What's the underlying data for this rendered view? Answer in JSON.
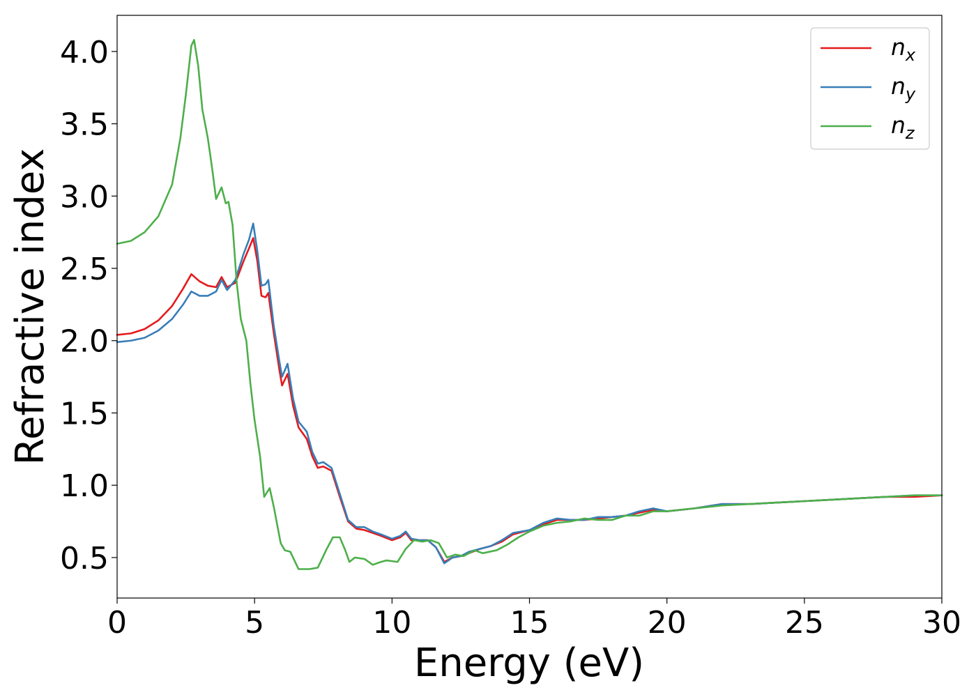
{
  "chart_data": {
    "type": "line",
    "title": "",
    "xlabel": "Energy (eV)",
    "ylabel": "Refractive index",
    "xlim": [
      0,
      30
    ],
    "ylim": [
      0.22,
      4.25
    ],
    "xticks": [
      0,
      5,
      10,
      15,
      20,
      25,
      30
    ],
    "yticks": [
      0.5,
      1.0,
      1.5,
      2.0,
      2.5,
      3.0,
      3.5,
      4.0
    ],
    "xtick_labels": [
      "0",
      "5",
      "10",
      "15",
      "20",
      "25",
      "30"
    ],
    "ytick_labels": [
      "0.5",
      "1.0",
      "1.5",
      "2.0",
      "2.5",
      "3.0",
      "3.5",
      "4.0"
    ],
    "grid": false,
    "legend_position": "top-right",
    "series": [
      {
        "name": "n",
        "subscript": "x",
        "color": "#e41a1c",
        "points": [
          [
            0,
            2.04
          ],
          [
            0.5,
            2.05
          ],
          [
            1.0,
            2.08
          ],
          [
            1.5,
            2.14
          ],
          [
            2.0,
            2.24
          ],
          [
            2.4,
            2.36
          ],
          [
            2.7,
            2.46
          ],
          [
            3.0,
            2.41
          ],
          [
            3.3,
            2.38
          ],
          [
            3.6,
            2.37
          ],
          [
            3.8,
            2.44
          ],
          [
            4.0,
            2.37
          ],
          [
            4.3,
            2.4
          ],
          [
            4.6,
            2.55
          ],
          [
            4.8,
            2.64
          ],
          [
            4.95,
            2.71
          ],
          [
            5.1,
            2.55
          ],
          [
            5.25,
            2.31
          ],
          [
            5.4,
            2.3
          ],
          [
            5.5,
            2.33
          ],
          [
            5.7,
            2.05
          ],
          [
            5.9,
            1.8
          ],
          [
            6.0,
            1.69
          ],
          [
            6.2,
            1.77
          ],
          [
            6.4,
            1.55
          ],
          [
            6.6,
            1.4
          ],
          [
            6.9,
            1.32
          ],
          [
            7.1,
            1.2
          ],
          [
            7.3,
            1.12
          ],
          [
            7.5,
            1.13
          ],
          [
            7.8,
            1.1
          ],
          [
            8.1,
            0.92
          ],
          [
            8.4,
            0.75
          ],
          [
            8.7,
            0.7
          ],
          [
            9.0,
            0.69
          ],
          [
            9.3,
            0.67
          ],
          [
            9.6,
            0.65
          ],
          [
            10.0,
            0.62
          ],
          [
            10.3,
            0.64
          ],
          [
            10.5,
            0.67
          ],
          [
            10.7,
            0.62
          ],
          [
            11.0,
            0.62
          ],
          [
            11.3,
            0.62
          ],
          [
            11.6,
            0.57
          ],
          [
            11.9,
            0.47
          ],
          [
            12.2,
            0.5
          ],
          [
            12.5,
            0.51
          ],
          [
            12.8,
            0.53
          ],
          [
            13.2,
            0.56
          ],
          [
            13.6,
            0.58
          ],
          [
            14.0,
            0.61
          ],
          [
            14.4,
            0.66
          ],
          [
            15.0,
            0.69
          ],
          [
            15.5,
            0.73
          ],
          [
            16.0,
            0.76
          ],
          [
            16.5,
            0.76
          ],
          [
            17.0,
            0.76
          ],
          [
            17.5,
            0.77
          ],
          [
            18.0,
            0.78
          ],
          [
            18.5,
            0.79
          ],
          [
            19.0,
            0.81
          ],
          [
            19.5,
            0.83
          ],
          [
            20.0,
            0.82
          ],
          [
            21.0,
            0.84
          ],
          [
            22.0,
            0.87
          ],
          [
            23.0,
            0.87
          ],
          [
            24.0,
            0.88
          ],
          [
            25.0,
            0.89
          ],
          [
            26.0,
            0.9
          ],
          [
            27.0,
            0.91
          ],
          [
            28.0,
            0.92
          ],
          [
            29.0,
            0.92
          ],
          [
            30.0,
            0.93
          ]
        ]
      },
      {
        "name": "n",
        "subscript": "y",
        "color": "#377eb8",
        "points": [
          [
            0,
            1.99
          ],
          [
            0.5,
            2.0
          ],
          [
            1.0,
            2.02
          ],
          [
            1.5,
            2.07
          ],
          [
            2.0,
            2.15
          ],
          [
            2.4,
            2.25
          ],
          [
            2.7,
            2.34
          ],
          [
            3.0,
            2.31
          ],
          [
            3.3,
            2.31
          ],
          [
            3.6,
            2.34
          ],
          [
            3.8,
            2.42
          ],
          [
            4.0,
            2.35
          ],
          [
            4.3,
            2.42
          ],
          [
            4.6,
            2.6
          ],
          [
            4.8,
            2.7
          ],
          [
            4.95,
            2.81
          ],
          [
            5.1,
            2.62
          ],
          [
            5.25,
            2.38
          ],
          [
            5.4,
            2.39
          ],
          [
            5.5,
            2.42
          ],
          [
            5.7,
            2.1
          ],
          [
            5.9,
            1.86
          ],
          [
            6.0,
            1.75
          ],
          [
            6.2,
            1.84
          ],
          [
            6.4,
            1.6
          ],
          [
            6.6,
            1.44
          ],
          [
            6.9,
            1.37
          ],
          [
            7.1,
            1.23
          ],
          [
            7.3,
            1.15
          ],
          [
            7.5,
            1.16
          ],
          [
            7.8,
            1.12
          ],
          [
            8.1,
            0.94
          ],
          [
            8.4,
            0.76
          ],
          [
            8.7,
            0.71
          ],
          [
            9.0,
            0.71
          ],
          [
            9.3,
            0.68
          ],
          [
            9.6,
            0.66
          ],
          [
            10.0,
            0.63
          ],
          [
            10.3,
            0.65
          ],
          [
            10.5,
            0.68
          ],
          [
            10.7,
            0.63
          ],
          [
            11.0,
            0.62
          ],
          [
            11.3,
            0.62
          ],
          [
            11.6,
            0.57
          ],
          [
            11.9,
            0.46
          ],
          [
            12.2,
            0.5
          ],
          [
            12.5,
            0.51
          ],
          [
            12.8,
            0.54
          ],
          [
            13.2,
            0.56
          ],
          [
            13.6,
            0.58
          ],
          [
            14.0,
            0.62
          ],
          [
            14.4,
            0.67
          ],
          [
            15.0,
            0.69
          ],
          [
            15.5,
            0.74
          ],
          [
            16.0,
            0.77
          ],
          [
            16.5,
            0.76
          ],
          [
            17.0,
            0.76
          ],
          [
            17.5,
            0.78
          ],
          [
            18.0,
            0.78
          ],
          [
            18.5,
            0.79
          ],
          [
            19.0,
            0.82
          ],
          [
            19.5,
            0.84
          ],
          [
            20.0,
            0.82
          ],
          [
            21.0,
            0.84
          ],
          [
            22.0,
            0.87
          ],
          [
            23.0,
            0.87
          ],
          [
            24.0,
            0.88
          ],
          [
            25.0,
            0.89
          ],
          [
            26.0,
            0.9
          ],
          [
            27.0,
            0.91
          ],
          [
            28.0,
            0.92
          ],
          [
            29.0,
            0.93
          ],
          [
            30.0,
            0.93
          ]
        ]
      },
      {
        "name": "n",
        "subscript": "z",
        "color": "#4daf4a",
        "points": [
          [
            0,
            2.67
          ],
          [
            0.5,
            2.69
          ],
          [
            1.0,
            2.75
          ],
          [
            1.5,
            2.86
          ],
          [
            2.0,
            3.08
          ],
          [
            2.3,
            3.4
          ],
          [
            2.5,
            3.7
          ],
          [
            2.7,
            4.04
          ],
          [
            2.8,
            4.08
          ],
          [
            2.95,
            3.9
          ],
          [
            3.1,
            3.6
          ],
          [
            3.3,
            3.4
          ],
          [
            3.45,
            3.2
          ],
          [
            3.6,
            2.98
          ],
          [
            3.8,
            3.06
          ],
          [
            3.95,
            2.95
          ],
          [
            4.05,
            2.96
          ],
          [
            4.2,
            2.8
          ],
          [
            4.35,
            2.4
          ],
          [
            4.5,
            2.15
          ],
          [
            4.7,
            2.0
          ],
          [
            4.85,
            1.7
          ],
          [
            5.0,
            1.45
          ],
          [
            5.2,
            1.2
          ],
          [
            5.35,
            0.92
          ],
          [
            5.55,
            0.98
          ],
          [
            5.7,
            0.85
          ],
          [
            5.95,
            0.6
          ],
          [
            6.1,
            0.55
          ],
          [
            6.3,
            0.54
          ],
          [
            6.6,
            0.42
          ],
          [
            7.0,
            0.42
          ],
          [
            7.3,
            0.43
          ],
          [
            7.6,
            0.55
          ],
          [
            7.85,
            0.64
          ],
          [
            8.1,
            0.64
          ],
          [
            8.3,
            0.55
          ],
          [
            8.45,
            0.47
          ],
          [
            8.65,
            0.5
          ],
          [
            9.0,
            0.49
          ],
          [
            9.3,
            0.45
          ],
          [
            9.6,
            0.47
          ],
          [
            9.8,
            0.48
          ],
          [
            10.2,
            0.47
          ],
          [
            10.5,
            0.56
          ],
          [
            10.8,
            0.62
          ],
          [
            11.1,
            0.61
          ],
          [
            11.4,
            0.62
          ],
          [
            11.7,
            0.6
          ],
          [
            12.0,
            0.5
          ],
          [
            12.3,
            0.52
          ],
          [
            12.6,
            0.51
          ],
          [
            13.0,
            0.55
          ],
          [
            13.3,
            0.53
          ],
          [
            13.8,
            0.55
          ],
          [
            14.2,
            0.59
          ],
          [
            14.6,
            0.64
          ],
          [
            15.0,
            0.68
          ],
          [
            15.5,
            0.72
          ],
          [
            16.0,
            0.74
          ],
          [
            16.5,
            0.75
          ],
          [
            17.0,
            0.77
          ],
          [
            17.5,
            0.76
          ],
          [
            18.0,
            0.76
          ],
          [
            18.5,
            0.79
          ],
          [
            19.0,
            0.79
          ],
          [
            19.5,
            0.82
          ],
          [
            20.0,
            0.82
          ],
          [
            21.0,
            0.84
          ],
          [
            22.0,
            0.86
          ],
          [
            23.0,
            0.87
          ],
          [
            24.0,
            0.88
          ],
          [
            25.0,
            0.89
          ],
          [
            26.0,
            0.9
          ],
          [
            27.0,
            0.91
          ],
          [
            28.0,
            0.92
          ],
          [
            29.0,
            0.93
          ],
          [
            30.0,
            0.93
          ]
        ]
      }
    ]
  }
}
